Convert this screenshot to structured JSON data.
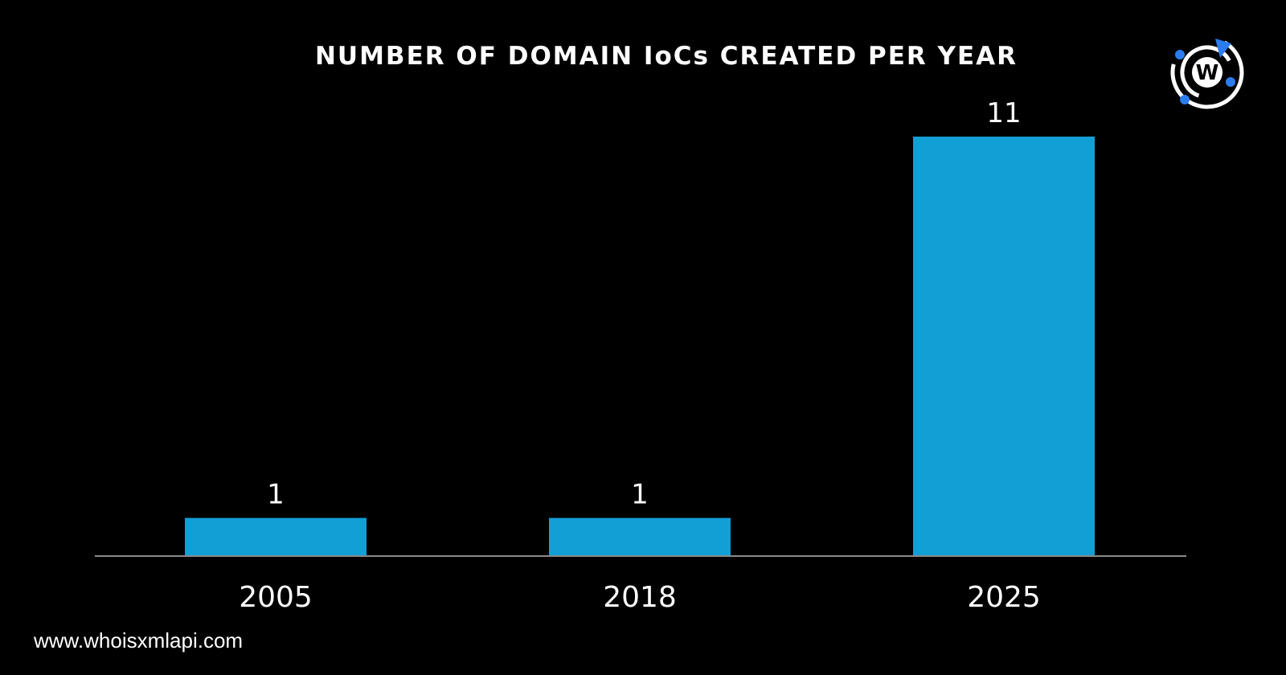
{
  "chart_data": {
    "type": "bar",
    "title": "NUMBER OF DOMAIN IoCs CREATED PER YEAR",
    "categories": [
      "2005",
      "2018",
      "2025"
    ],
    "values": [
      1,
      1,
      11
    ],
    "data_labels": [
      "1",
      "1",
      "11"
    ],
    "xlabel": "",
    "ylabel": "",
    "ylim": [
      0,
      11
    ],
    "grid": false,
    "legend": "none",
    "bar_color": "#129fd5",
    "axis_color": "#8a8a8a",
    "background": "#000000"
  },
  "footer": {
    "website": "www.whoisxmlapi.com"
  },
  "logo": {
    "icon": "whoisxmlapi-w-logo-icon",
    "letter": "W",
    "accent": "#2b7cf0"
  }
}
